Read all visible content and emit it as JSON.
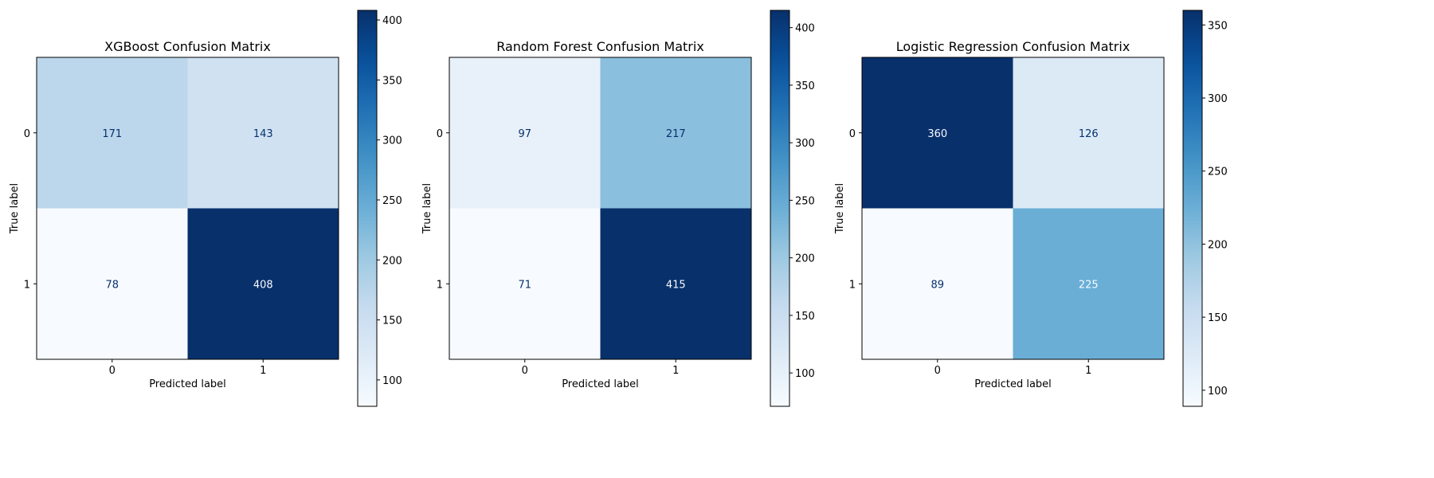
{
  "chart_data": [
    {
      "type": "heatmap",
      "title": "XGBoost Confusion Matrix",
      "xlabel": "Predicted label",
      "ylabel": "True label",
      "x_ticks": [
        "0",
        "1"
      ],
      "y_ticks": [
        "0",
        "1"
      ],
      "matrix": [
        [
          171,
          143
        ],
        [
          78,
          408
        ]
      ],
      "colormap": "Blues",
      "colorbar": {
        "min": 78,
        "max": 408,
        "ticks": [
          100,
          150,
          200,
          250,
          300,
          350,
          400
        ]
      }
    },
    {
      "type": "heatmap",
      "title": "Random Forest Confusion Matrix",
      "xlabel": "Predicted label",
      "ylabel": "True label",
      "x_ticks": [
        "0",
        "1"
      ],
      "y_ticks": [
        "0",
        "1"
      ],
      "matrix": [
        [
          97,
          217
        ],
        [
          71,
          415
        ]
      ],
      "colormap": "Blues",
      "colorbar": {
        "min": 71,
        "max": 415,
        "ticks": [
          100,
          150,
          200,
          250,
          300,
          350,
          400
        ]
      }
    },
    {
      "type": "heatmap",
      "title": "Logistic Regression Confusion Matrix",
      "xlabel": "Predicted label",
      "ylabel": "True label",
      "x_ticks": [
        "0",
        "1"
      ],
      "y_ticks": [
        "0",
        "1"
      ],
      "matrix": [
        [
          360,
          126
        ],
        [
          89,
          225
        ]
      ],
      "colormap": "Blues",
      "colorbar": {
        "min": 89,
        "max": 360,
        "ticks": [
          100,
          150,
          200,
          250,
          300,
          350
        ]
      }
    }
  ],
  "colors": {
    "blues_stops": [
      "#f7fbff",
      "#deebf7",
      "#c6dbef",
      "#9ecae1",
      "#6baed6",
      "#4292c6",
      "#2171b5",
      "#08519c",
      "#08306b"
    ],
    "text_dark": "#08306b",
    "text_light": "#f7fbff"
  }
}
